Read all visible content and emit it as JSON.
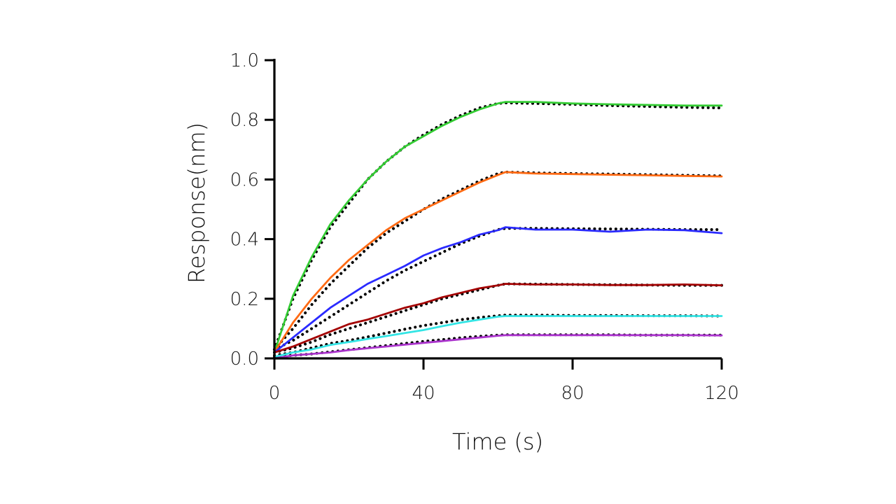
{
  "chart_data": {
    "type": "line",
    "title": "",
    "xlabel": "Time (s)",
    "ylabel": "Response(nm)",
    "xlim": [
      0,
      120
    ],
    "ylim": [
      0,
      1.0
    ],
    "xticks": [
      0,
      40,
      80,
      120
    ],
    "xtick_labels": [
      "0",
      "40",
      "80",
      "120"
    ],
    "yticks": [
      0,
      0.2,
      0.4,
      0.6,
      0.8,
      1.0
    ],
    "ytick_labels": [
      "0.0",
      "0.2",
      "0.4",
      "0.6",
      "0.8",
      "1.0"
    ],
    "grid": false,
    "legend": "none",
    "series": [
      {
        "color": "#33cc33",
        "x": [
          0,
          5,
          10,
          15,
          20,
          25,
          30,
          35,
          40,
          45,
          50,
          55,
          60,
          62,
          70,
          80,
          90,
          100,
          110,
          120
        ],
        "y": [
          0.02,
          0.21,
          0.34,
          0.45,
          0.53,
          0.6,
          0.66,
          0.71,
          0.745,
          0.78,
          0.81,
          0.835,
          0.855,
          0.86,
          0.86,
          0.855,
          0.852,
          0.85,
          0.848,
          0.848
        ]
      },
      {
        "color": "#ff6a13",
        "x": [
          0,
          5,
          10,
          15,
          20,
          25,
          30,
          35,
          40,
          45,
          50,
          55,
          60,
          62,
          70,
          80,
          90,
          100,
          110,
          120
        ],
        "y": [
          0.02,
          0.12,
          0.2,
          0.27,
          0.33,
          0.38,
          0.43,
          0.47,
          0.5,
          0.53,
          0.56,
          0.59,
          0.615,
          0.625,
          0.62,
          0.618,
          0.616,
          0.614,
          0.612,
          0.61
        ]
      },
      {
        "color": "#2a2aff",
        "x": [
          0,
          5,
          10,
          15,
          20,
          25,
          30,
          35,
          40,
          45,
          50,
          55,
          60,
          62,
          70,
          80,
          90,
          100,
          110,
          120
        ],
        "y": [
          0.02,
          0.07,
          0.12,
          0.17,
          0.21,
          0.25,
          0.28,
          0.31,
          0.345,
          0.37,
          0.39,
          0.415,
          0.43,
          0.44,
          0.432,
          0.432,
          0.425,
          0.432,
          0.43,
          0.42
        ]
      },
      {
        "color": "#a30000",
        "x": [
          0,
          5,
          10,
          15,
          20,
          25,
          30,
          35,
          40,
          45,
          50,
          55,
          60,
          62,
          70,
          80,
          90,
          100,
          110,
          120
        ],
        "y": [
          0.02,
          0.04,
          0.065,
          0.09,
          0.115,
          0.13,
          0.15,
          0.17,
          0.185,
          0.205,
          0.22,
          0.235,
          0.245,
          0.25,
          0.248,
          0.248,
          0.246,
          0.246,
          0.248,
          0.245
        ]
      },
      {
        "color": "#33e5e5",
        "x": [
          0,
          5,
          10,
          15,
          20,
          25,
          30,
          35,
          40,
          45,
          50,
          55,
          60,
          62,
          70,
          80,
          90,
          100,
          110,
          120
        ],
        "y": [
          0.005,
          0.02,
          0.03,
          0.045,
          0.055,
          0.065,
          0.075,
          0.085,
          0.095,
          0.108,
          0.12,
          0.13,
          0.14,
          0.142,
          0.142,
          0.142,
          0.142,
          0.142,
          0.142,
          0.142
        ]
      },
      {
        "color": "#aa33cc",
        "x": [
          0,
          5,
          10,
          15,
          20,
          25,
          30,
          35,
          40,
          45,
          50,
          55,
          60,
          62,
          70,
          80,
          90,
          100,
          110,
          120
        ],
        "y": [
          0.0,
          0.01,
          0.015,
          0.02,
          0.028,
          0.034,
          0.04,
          0.046,
          0.052,
          0.058,
          0.064,
          0.07,
          0.076,
          0.078,
          0.078,
          0.078,
          0.078,
          0.078,
          0.078,
          0.077
        ]
      }
    ],
    "fits": [
      {
        "x": [
          0,
          5,
          10,
          15,
          20,
          25,
          30,
          35,
          40,
          45,
          50,
          55,
          60,
          62,
          70,
          80,
          90,
          100,
          110,
          120
        ],
        "y": [
          0.03,
          0.2,
          0.33,
          0.44,
          0.52,
          0.6,
          0.66,
          0.71,
          0.75,
          0.785,
          0.815,
          0.84,
          0.855,
          0.857,
          0.855,
          0.852,
          0.848,
          0.845,
          0.842,
          0.84
        ]
      },
      {
        "x": [
          0,
          5,
          10,
          15,
          20,
          25,
          30,
          35,
          40,
          45,
          50,
          55,
          60,
          62,
          70,
          80,
          90,
          100,
          110,
          120
        ],
        "y": [
          0.03,
          0.1,
          0.18,
          0.25,
          0.31,
          0.37,
          0.42,
          0.46,
          0.5,
          0.535,
          0.565,
          0.595,
          0.62,
          0.625,
          0.622,
          0.62,
          0.618,
          0.616,
          0.614,
          0.612
        ]
      },
      {
        "x": [
          0,
          5,
          10,
          15,
          20,
          25,
          30,
          35,
          40,
          45,
          50,
          55,
          60,
          62,
          70,
          80,
          90,
          100,
          110,
          120
        ],
        "y": [
          0.03,
          0.06,
          0.1,
          0.14,
          0.18,
          0.22,
          0.26,
          0.295,
          0.325,
          0.355,
          0.385,
          0.41,
          0.432,
          0.436,
          0.436,
          0.435,
          0.434,
          0.433,
          0.432,
          0.432
        ]
      },
      {
        "x": [
          0,
          5,
          10,
          15,
          20,
          25,
          30,
          35,
          40,
          45,
          50,
          55,
          60,
          62,
          70,
          80,
          90,
          100,
          110,
          120
        ],
        "y": [
          0.02,
          0.035,
          0.055,
          0.08,
          0.1,
          0.12,
          0.14,
          0.16,
          0.18,
          0.2,
          0.215,
          0.23,
          0.245,
          0.25,
          0.249,
          0.248,
          0.247,
          0.246,
          0.245,
          0.245
        ]
      },
      {
        "x": [
          0,
          5,
          10,
          15,
          20,
          25,
          30,
          35,
          40,
          45,
          50,
          55,
          60,
          62,
          70,
          80,
          90,
          100,
          110,
          120
        ],
        "y": [
          0.01,
          0.02,
          0.035,
          0.05,
          0.06,
          0.072,
          0.085,
          0.098,
          0.11,
          0.12,
          0.13,
          0.137,
          0.143,
          0.145,
          0.145,
          0.144,
          0.144,
          0.143,
          0.143,
          0.142
        ]
      },
      {
        "x": [
          0,
          5,
          10,
          15,
          20,
          25,
          30,
          35,
          40,
          45,
          50,
          55,
          60,
          62,
          70,
          80,
          90,
          100,
          110,
          120
        ],
        "y": [
          0.005,
          0.01,
          0.015,
          0.022,
          0.029,
          0.036,
          0.043,
          0.05,
          0.057,
          0.063,
          0.069,
          0.074,
          0.078,
          0.079,
          0.079,
          0.079,
          0.079,
          0.078,
          0.078,
          0.078
        ]
      }
    ]
  }
}
